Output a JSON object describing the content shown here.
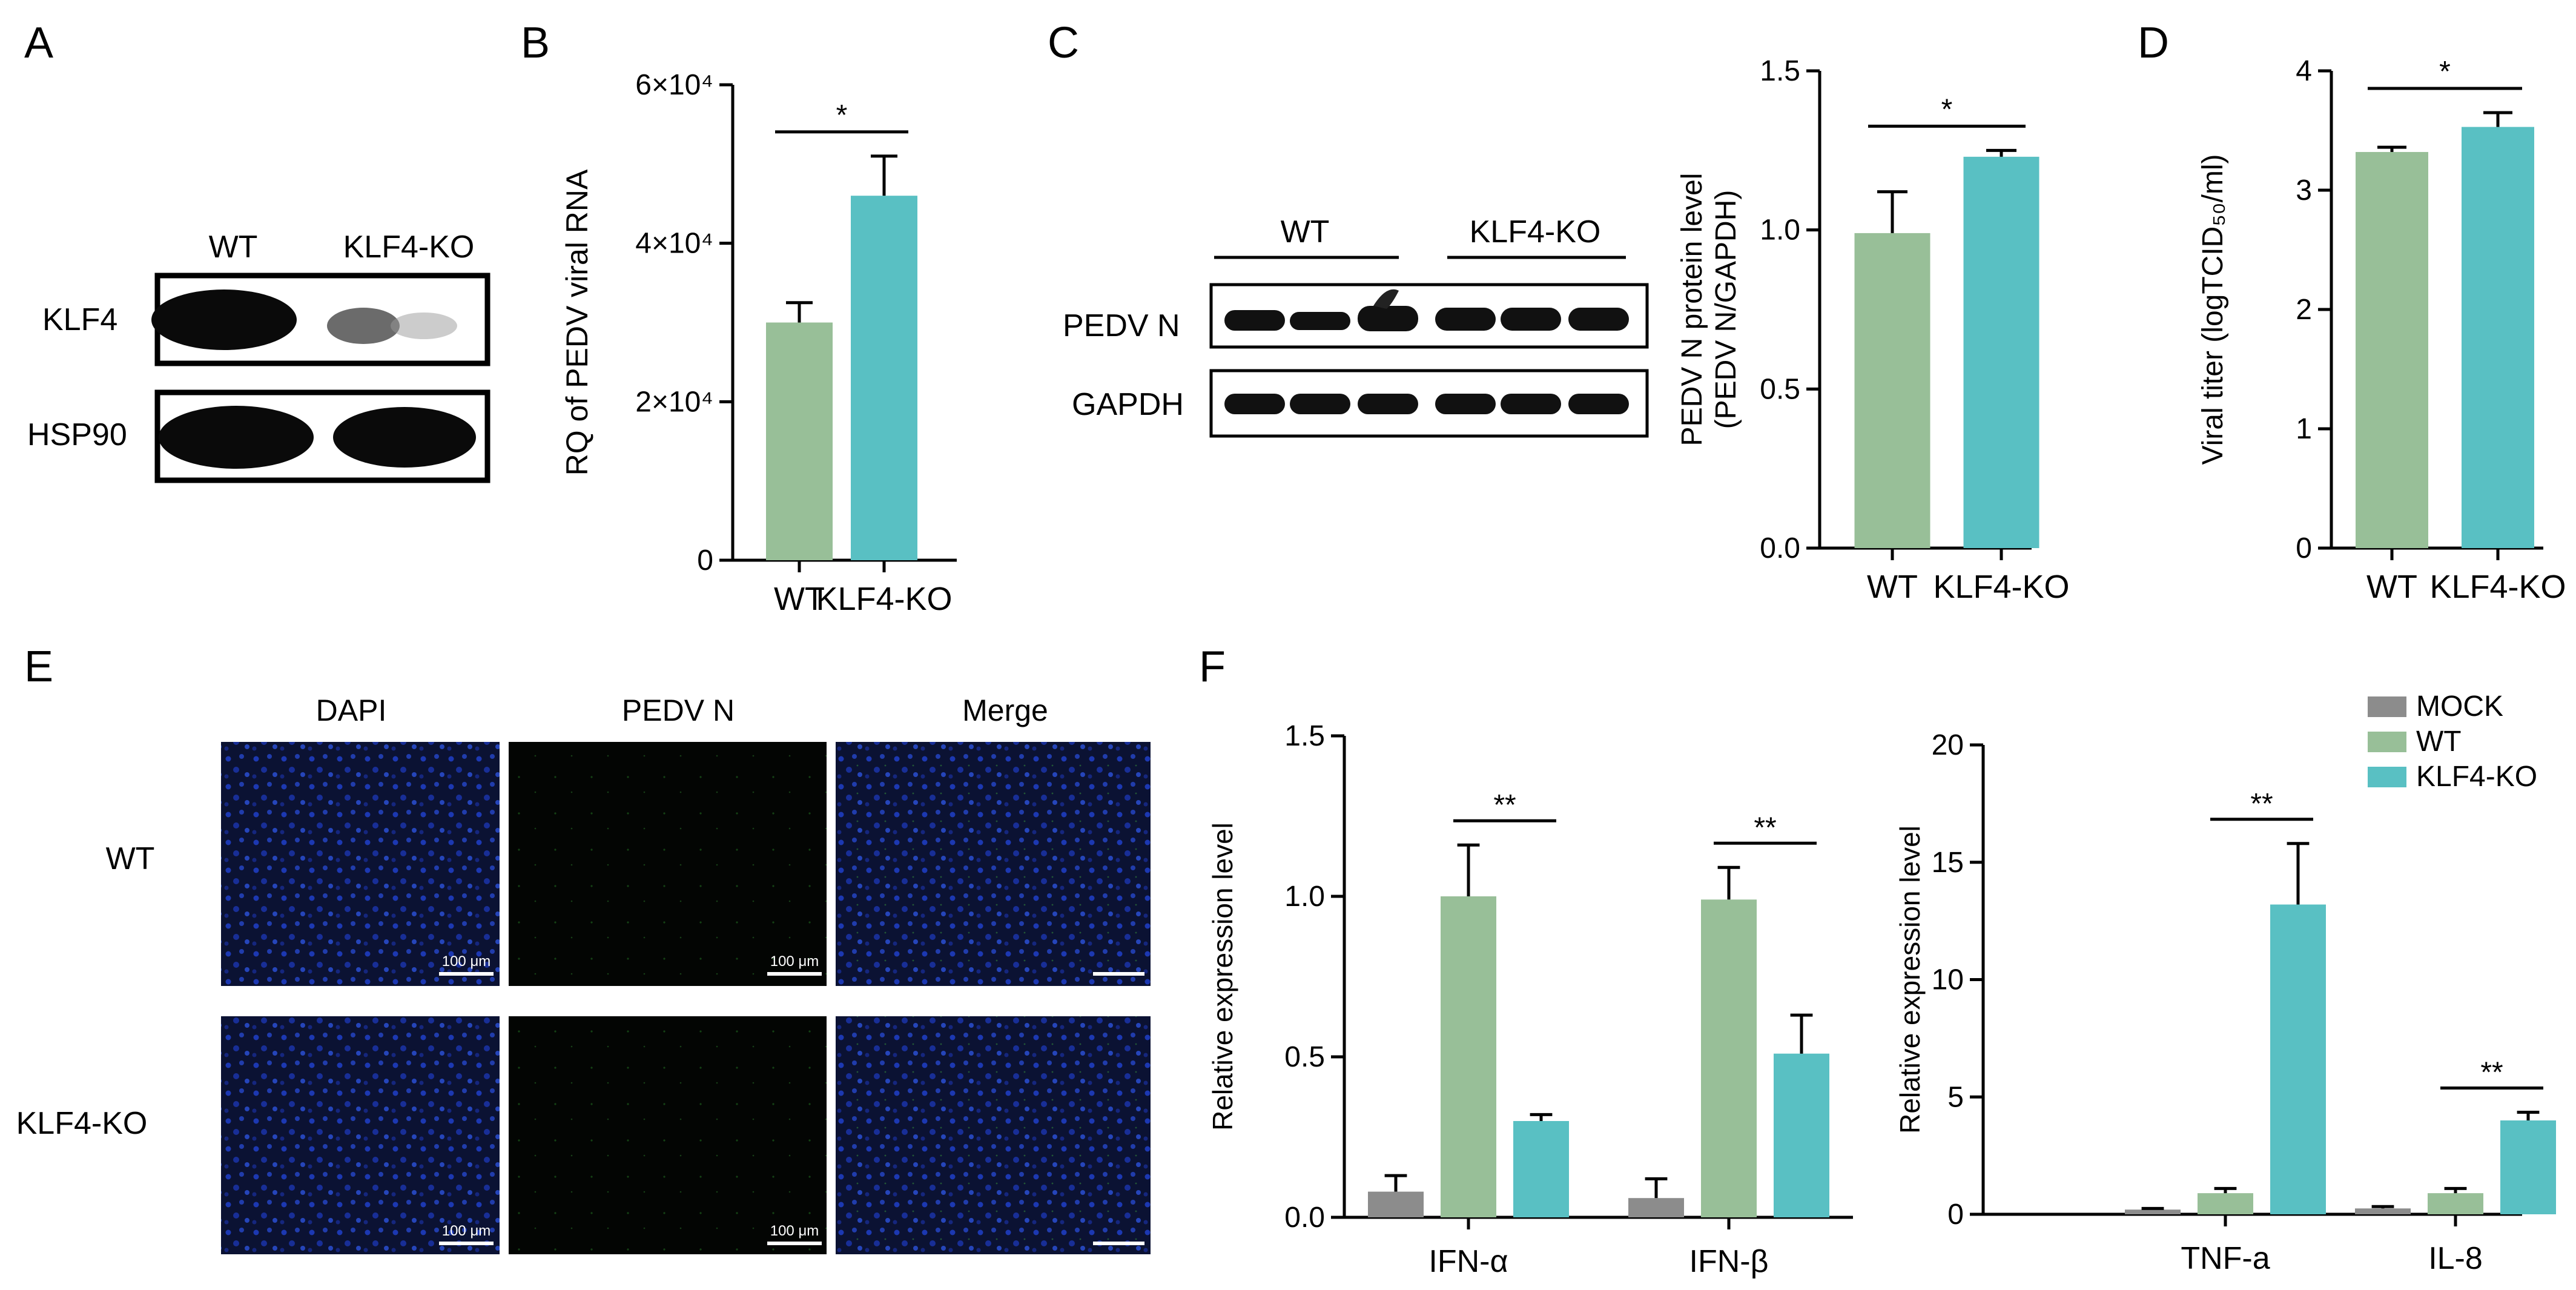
{
  "colors": {
    "mock": "#8c8c8c",
    "wt": "#98bf98",
    "ko": "#59c0c3",
    "dapi": "#0b1233",
    "pedvn": "#030503"
  },
  "panels": {
    "A": {
      "letter": "A",
      "lanes": [
        "WT",
        "KLF4-KO"
      ],
      "rows": [
        "KLF4",
        "HSP90"
      ]
    },
    "C_blot": {
      "letter": "C",
      "groups": [
        "WT",
        "KLF4-KO"
      ],
      "rows": [
        "PEDV N",
        "GAPDH"
      ]
    },
    "E": {
      "letter": "E",
      "columns": [
        "DAPI",
        "PEDV N",
        "Merge"
      ],
      "rows": [
        "WT",
        "KLF4-KO"
      ],
      "scalebar_label": "100 μm"
    },
    "F": {
      "letter": "F"
    }
  },
  "chart_data": [
    {
      "id": "B",
      "letter": "B",
      "type": "bar",
      "categories": [
        "WT",
        "KLF4-KO"
      ],
      "values": [
        30000,
        46000
      ],
      "errors": [
        2500,
        5000
      ],
      "ylabel": "RQ of PEDV viral RNA",
      "ylim": [
        0,
        60000
      ],
      "yticks": [
        0,
        20000,
        40000,
        60000
      ],
      "yticklabels": [
        "0",
        "2×10⁴",
        "4×10⁴",
        "6×10⁴"
      ],
      "significance": [
        {
          "from": 0,
          "to": 1,
          "label": "*"
        }
      ]
    },
    {
      "id": "C",
      "type": "bar",
      "categories": [
        "WT",
        "KLF4-KO"
      ],
      "values": [
        0.99,
        1.23
      ],
      "errors": [
        0.13,
        0.02
      ],
      "ylabel": "PEDV N protein level\n(PEDV N/GAPDH)",
      "ylim": [
        0,
        1.5
      ],
      "yticks": [
        0,
        0.5,
        1.0,
        1.5
      ],
      "yticklabels": [
        "0.0",
        "0.5",
        "1.0",
        "1.5"
      ],
      "significance": [
        {
          "from": 0,
          "to": 1,
          "label": "*"
        }
      ]
    },
    {
      "id": "D",
      "letter": "D",
      "type": "bar",
      "categories": [
        "WT",
        "KLF4-KO"
      ],
      "values": [
        3.32,
        3.53
      ],
      "errors": [
        0.04,
        0.12
      ],
      "ylabel": "Viral titer (logTCID₅₀/ml)",
      "ylim": [
        0,
        4
      ],
      "yticks": [
        0,
        1,
        2,
        3,
        4
      ],
      "yticklabels": [
        "0",
        "1",
        "2",
        "3",
        "4"
      ],
      "significance": [
        {
          "from": 0,
          "to": 1,
          "label": "*"
        }
      ]
    },
    {
      "id": "F1",
      "type": "bar",
      "categories": [
        "IFN-α",
        "IFN-β"
      ],
      "series": [
        {
          "name": "MOCK",
          "values": [
            0.08,
            0.06
          ],
          "errors": [
            0.05,
            0.06
          ]
        },
        {
          "name": "WT",
          "values": [
            1.0,
            0.99
          ],
          "errors": [
            0.16,
            0.1
          ]
        },
        {
          "name": "KLF4-KO",
          "values": [
            0.3,
            0.51
          ],
          "errors": [
            0.02,
            0.12
          ]
        }
      ],
      "ylabel": "Relative expression level",
      "ylim": [
        0,
        1.5
      ],
      "yticks": [
        0,
        0.5,
        1.0,
        1.5
      ],
      "yticklabels": [
        "0.0",
        "0.5",
        "1.0",
        "1.5"
      ],
      "significance": [
        {
          "category": 0,
          "from": 1,
          "to": 2,
          "label": "**"
        },
        {
          "category": 1,
          "from": 1,
          "to": 2,
          "label": "**"
        }
      ]
    },
    {
      "id": "F2",
      "type": "bar",
      "categories": [
        "TNF-a",
        "IL-8"
      ],
      "series": [
        {
          "name": "MOCK",
          "values": [
            0.2,
            0.25
          ],
          "errors": [
            0.05,
            0.08
          ]
        },
        {
          "name": "WT",
          "values": [
            0.9,
            0.9
          ],
          "errors": [
            0.2,
            0.2
          ]
        },
        {
          "name": "KLF4-KO",
          "values": [
            13.2,
            4.0
          ],
          "errors": [
            2.6,
            0.35
          ]
        }
      ],
      "ylabel": "Relative expression level",
      "ylim": [
        0,
        20
      ],
      "yticks": [
        0,
        5,
        10,
        15,
        20
      ],
      "yticklabels": [
        "0",
        "5",
        "10",
        "15",
        "20"
      ],
      "legend": [
        "MOCK",
        "WT",
        "KLF4-KO"
      ],
      "legend_position": "top-right",
      "significance": [
        {
          "category": 0,
          "from": 1,
          "to": 2,
          "label": "**"
        },
        {
          "category": 1,
          "from": 1,
          "to": 2,
          "label": "**"
        }
      ]
    }
  ]
}
